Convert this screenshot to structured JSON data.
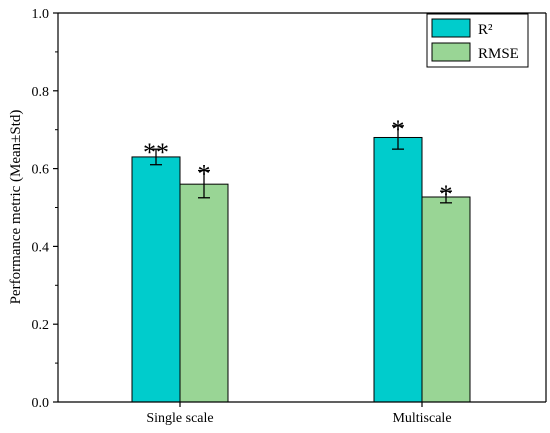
{
  "chart_data": {
    "type": "bar",
    "title": "",
    "xlabel": "",
    "ylabel": "Performance metric (Mean±Std)",
    "ylim": [
      0,
      1.0
    ],
    "yticks": [
      "0.0",
      "0.2",
      "0.4",
      "0.6",
      "0.8",
      "1.0"
    ],
    "categories": [
      "Single scale",
      "Multiscale"
    ],
    "series": [
      {
        "name": "R²",
        "color": "#00cccc",
        "values": [
          0.63,
          0.68
        ],
        "errors": [
          0.02,
          0.03
        ],
        "significance": [
          "**",
          "*"
        ]
      },
      {
        "name": "RMSE",
        "color": "#99d595",
        "values": [
          0.56,
          0.527
        ],
        "errors": [
          0.035,
          0.015
        ],
        "significance": [
          "*",
          "*"
        ]
      }
    ],
    "legend": {
      "position": "top-right"
    },
    "grid": false
  }
}
